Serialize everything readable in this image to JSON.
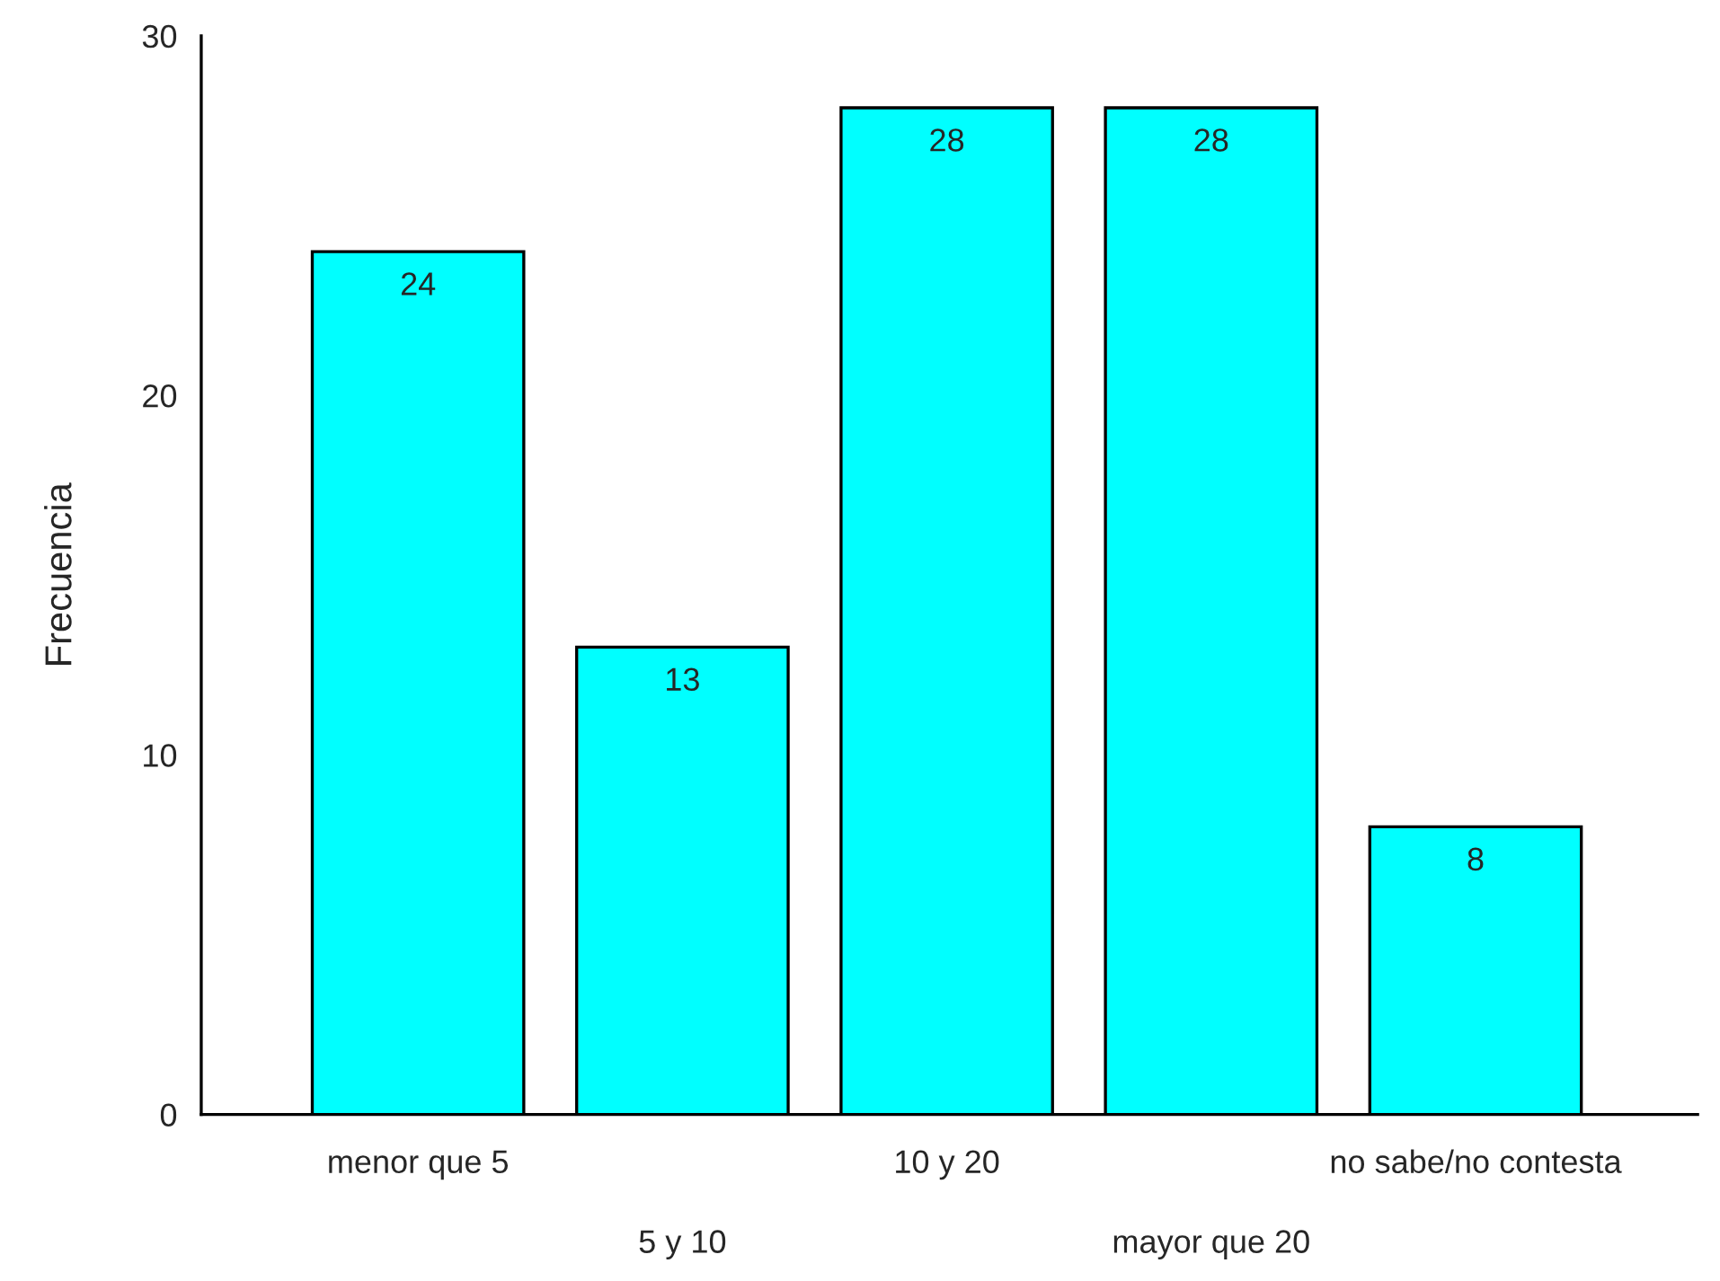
{
  "chart_data": {
    "type": "bar",
    "ylabel": "Frecuencia",
    "categories": [
      "menor que 5",
      "5 y 10",
      "10 y 20",
      "mayor que 20",
      "no sabe/no contesta"
    ],
    "values": [
      24,
      13,
      28,
      28,
      8
    ],
    "color": "#00ffff",
    "ylim": [
      0,
      30
    ],
    "yticks": [
      0,
      10,
      20,
      30
    ],
    "grid": false,
    "data_labels": true
  }
}
